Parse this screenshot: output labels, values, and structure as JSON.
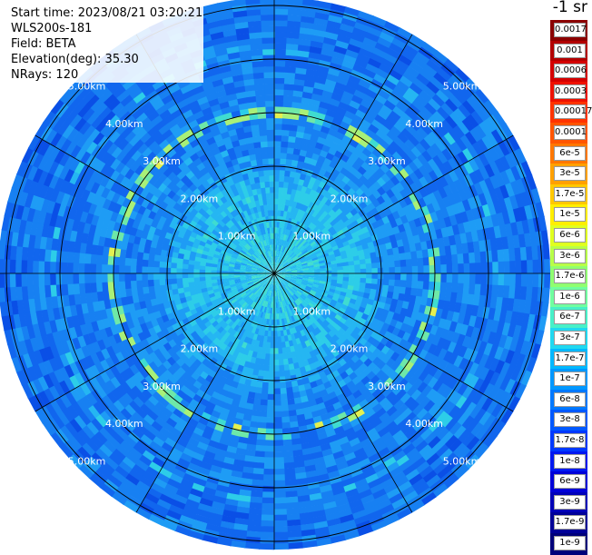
{
  "header": {
    "start_time": "Start time: 2023/08/21 03:20:21",
    "instrument": "WLS200s-181",
    "field": "Field: BETA",
    "elevation": "Elevation(deg): 35.30",
    "nrays": "NRays: 120"
  },
  "colorbar": {
    "unit_label": "-1 sr",
    "ticks": [
      "0.0017",
      "0.001",
      "0.0006",
      "0.0003",
      "0.00017",
      "0.0001",
      "6e-5",
      "3e-5",
      "1.7e-5",
      "1e-5",
      "6e-6",
      "3e-6",
      "1.7e-6",
      "1e-6",
      "6e-7",
      "3e-7",
      "1.7e-7",
      "1e-7",
      "6e-8",
      "3e-8",
      "1.7e-8",
      "1e-8",
      "6e-9",
      "3e-9",
      "1.7e-9",
      "1e-9"
    ],
    "colors": [
      "#8b0000",
      "#b30000",
      "#d40000",
      "#ee1100",
      "#ff3300",
      "#ff5500",
      "#ff7700",
      "#ffa000",
      "#ffc800",
      "#ffee00",
      "#e0ff20",
      "#b8ff48",
      "#90ff70",
      "#70ffa0",
      "#48f0c8",
      "#20d8f0",
      "#00b8ff",
      "#0098ff",
      "#0078ff",
      "#0058ff",
      "#0038ff",
      "#0018f0",
      "#0000d8",
      "#0000b8",
      "#000098",
      "#00007a"
    ]
  },
  "chart_data": {
    "type": "heatmap",
    "projection": "polar (PPI scan)",
    "nrays": 120,
    "range_rings_km": [
      1.0,
      2.0,
      3.0,
      4.0,
      5.0
    ],
    "range_labels": [
      "1.00km",
      "2.00km",
      "3.00km",
      "4.00km",
      "5.00km"
    ],
    "spoke_count": 12,
    "field": "BETA",
    "value_range": [
      1e-09,
      0.0017
    ],
    "color_scale": "log",
    "description_values": {
      "center_level": "1e-6",
      "background_level": "1e-7",
      "enhanced_ring_km": 3.0,
      "enhanced_ring_level": "6e-6"
    }
  }
}
